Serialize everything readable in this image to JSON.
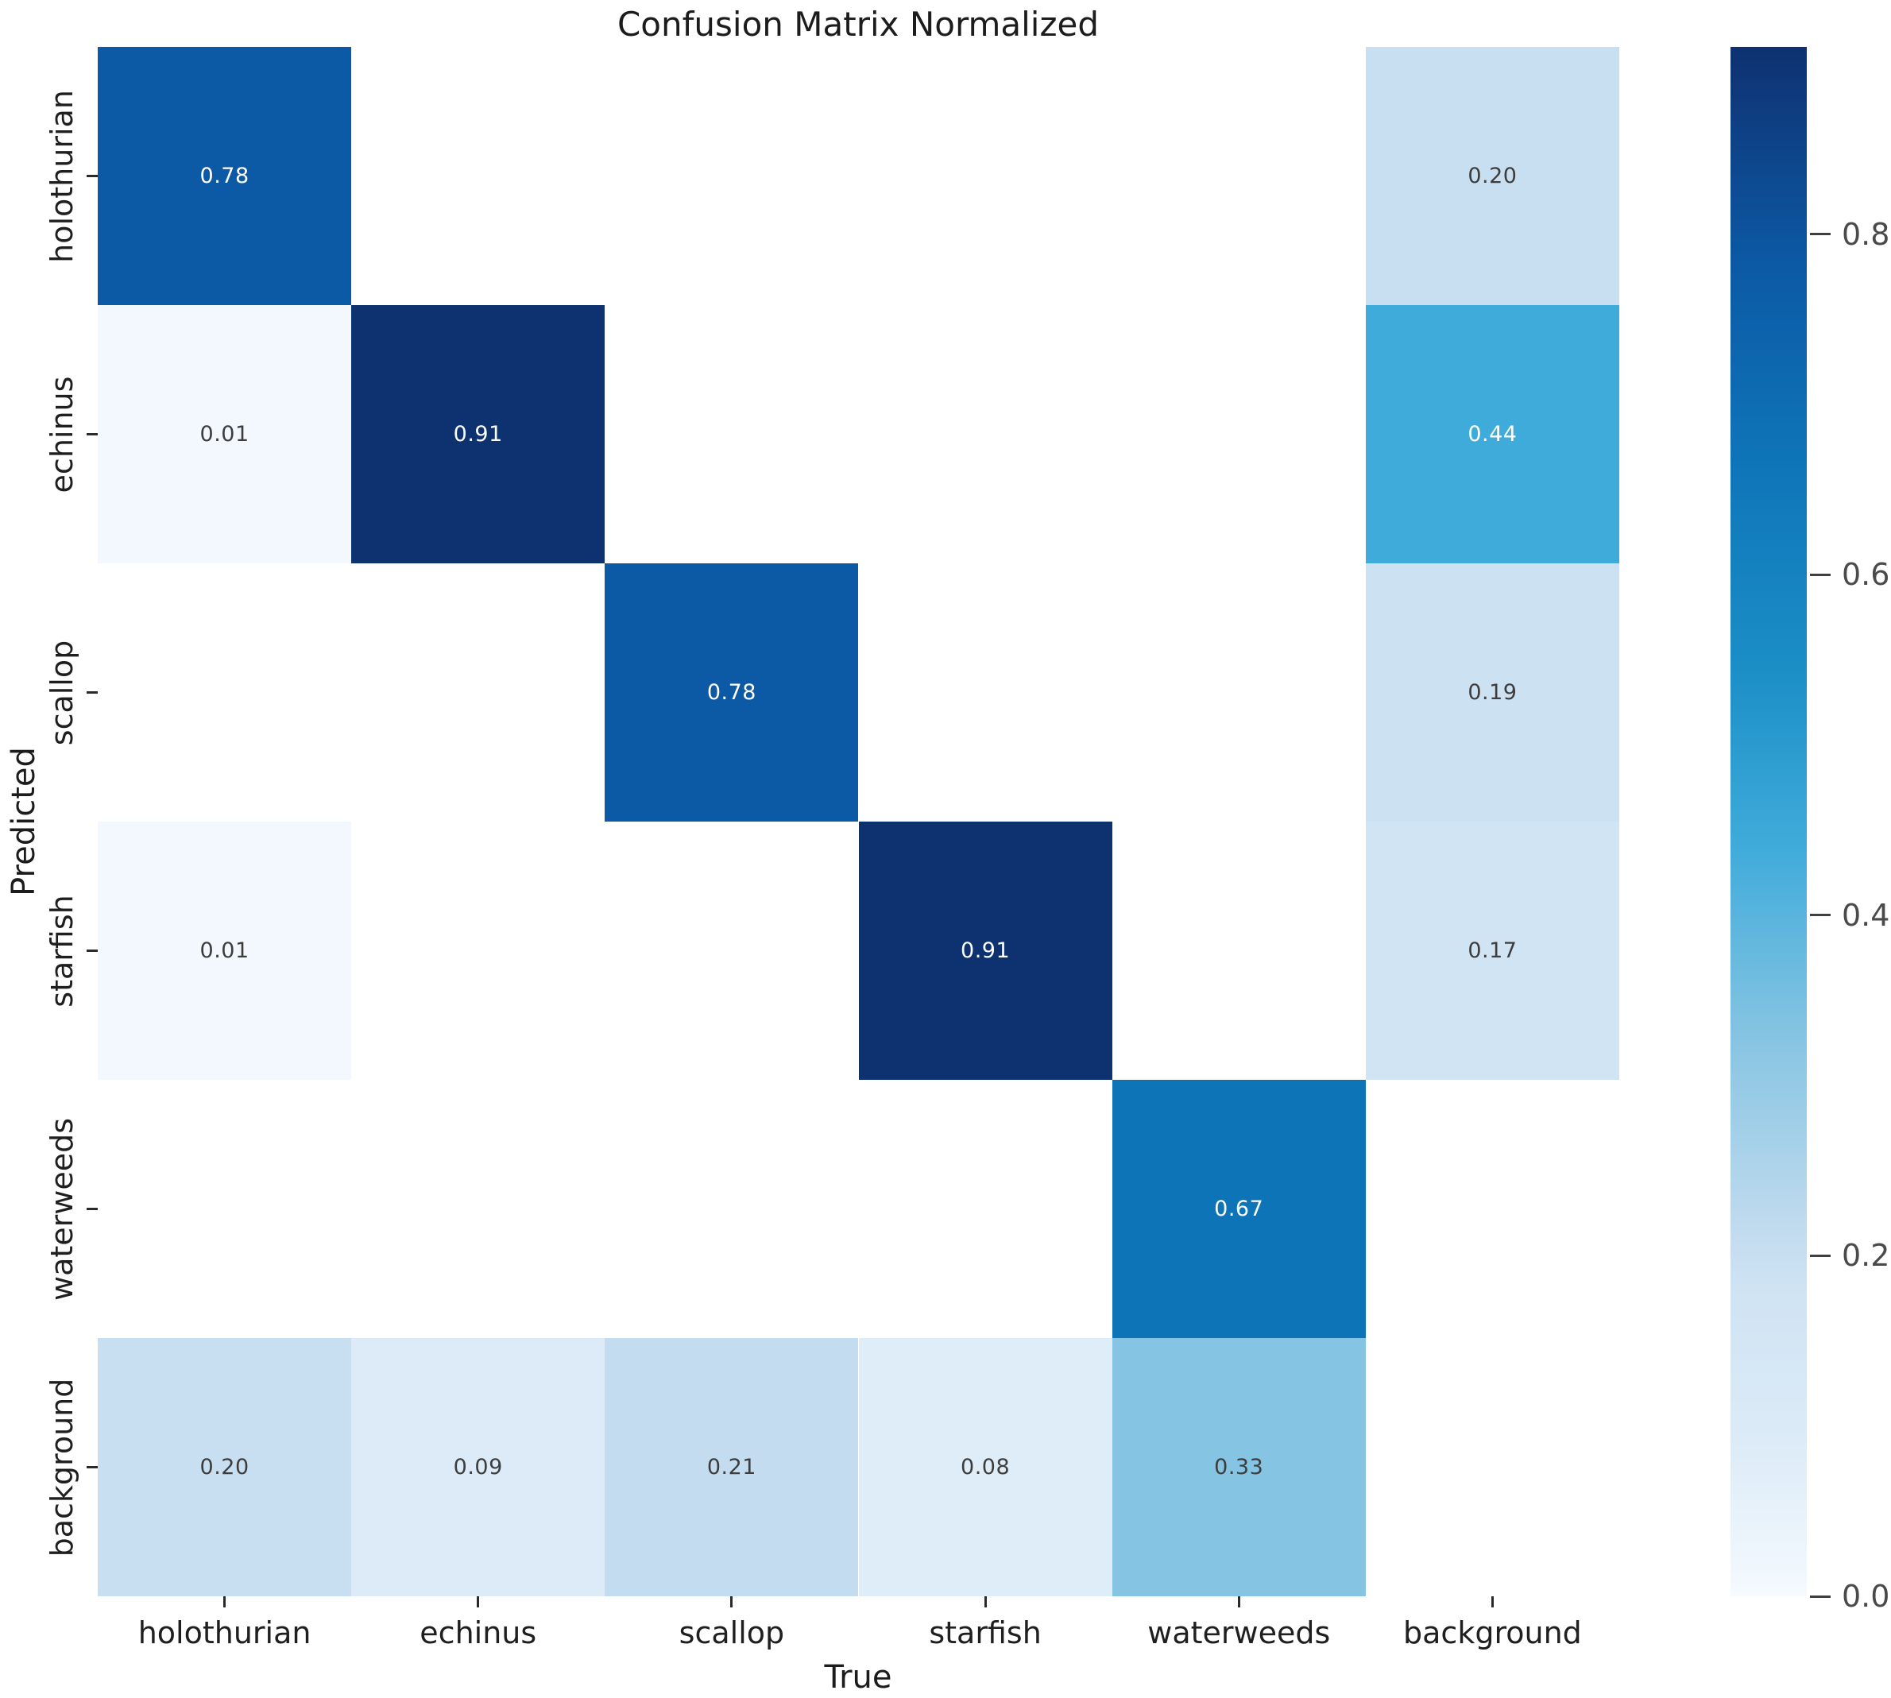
{
  "title": "Confusion Matrix Normalized",
  "axes": {
    "x_label": "True",
    "y_label": "Predicted"
  },
  "chart_data": {
    "type": "heatmap",
    "title": "Confusion Matrix Normalized",
    "xlabel": "True",
    "ylabel": "Predicted",
    "x_categories": [
      "holothurian",
      "echinus",
      "scallop",
      "starfish",
      "waterweeds",
      "background"
    ],
    "y_categories": [
      "holothurian",
      "echinus",
      "scallop",
      "starfish",
      "waterweeds",
      "background"
    ],
    "matrix": [
      [
        0.78,
        null,
        null,
        null,
        null,
        0.2
      ],
      [
        0.01,
        0.91,
        null,
        null,
        null,
        0.44
      ],
      [
        null,
        null,
        0.78,
        null,
        null,
        0.19
      ],
      [
        0.01,
        null,
        null,
        0.91,
        null,
        0.17
      ],
      [
        null,
        null,
        null,
        null,
        0.67,
        null
      ],
      [
        0.2,
        0.09,
        0.21,
        0.08,
        0.33,
        null
      ]
    ],
    "value_format_decimals": 2,
    "vmin": 0.0,
    "vmax": 0.91,
    "colormap": "Blues",
    "grid": false,
    "legend_position": "right-colorbar",
    "colorbar_ticks": [
      0.0,
      0.2,
      0.4,
      0.6,
      0.8
    ]
  },
  "colors": {
    "background": "#ffffff",
    "empty_cell": "#ffffff",
    "annotation_dark_text": "#3d3d3d",
    "annotation_light_text": "#ffffff",
    "tick_text": "#1f1f1f",
    "colorbar_tick_text": "#4a4a4a",
    "colormap_stops": [
      [
        0.0,
        "#f7fbff"
      ],
      [
        0.011,
        "#f2f8fd"
      ],
      [
        0.1,
        "#dcebf7"
      ],
      [
        0.2,
        "#cfe3f3"
      ],
      [
        0.232,
        "#c3dcef"
      ],
      [
        0.363,
        "#85c4e2"
      ],
      [
        0.484,
        "#3fabda"
      ],
      [
        0.6,
        "#1b8ec6"
      ],
      [
        0.736,
        "#0e74b8"
      ],
      [
        0.857,
        "#0c5aa6"
      ],
      [
        1.0,
        "#0e3170"
      ]
    ]
  }
}
